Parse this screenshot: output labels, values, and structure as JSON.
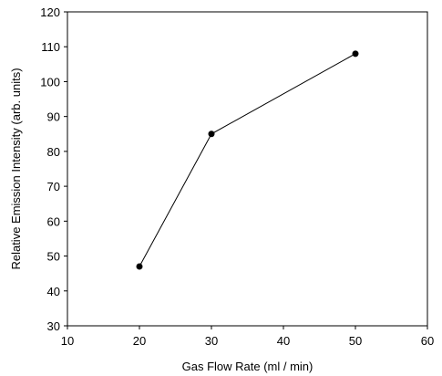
{
  "chart_data": {
    "type": "line",
    "title": "",
    "xlabel": "Gas Flow Rate (ml / min)",
    "ylabel": "Relative Emission Intensity (arb. units)",
    "xlim": [
      10,
      60
    ],
    "ylim": [
      30,
      120
    ],
    "xticks": [
      "10",
      "20",
      "30",
      "40",
      "50",
      "60"
    ],
    "yticks": [
      "30",
      "40",
      "50",
      "60",
      "70",
      "80",
      "90",
      "100",
      "110",
      "120"
    ],
    "grid": false,
    "series": [
      {
        "x": [
          20,
          30,
          50
        ],
        "y": [
          47,
          85,
          108
        ]
      }
    ],
    "colors": {
      "line": "#000000",
      "marker": "#000000",
      "axes": "#000000"
    }
  }
}
